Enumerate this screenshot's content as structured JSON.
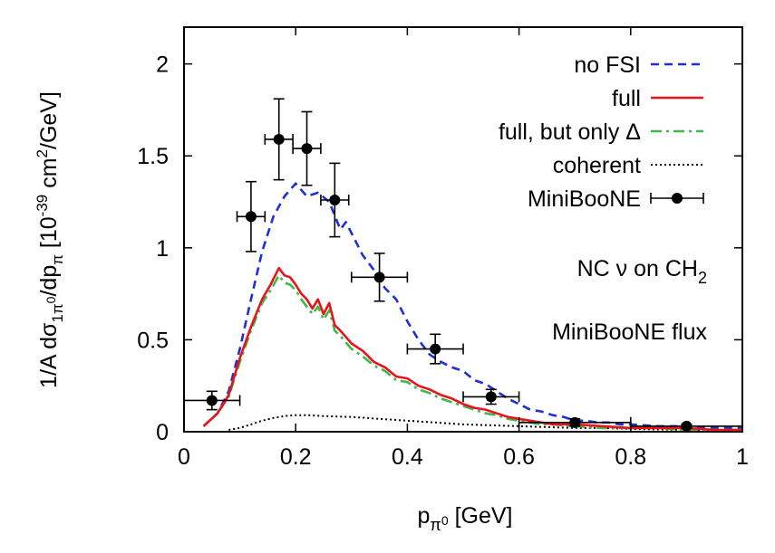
{
  "chart_data": {
    "type": "line",
    "xlabel": "p",
    "xlabel_sub": "π",
    "xlabel_subsup": "0",
    "xlabel_unit": " [GeV]",
    "ylabel_parts": {
      "pre": "1/A dσ",
      "sub1": "1π",
      "sup1": "0",
      "mid": "/dp",
      "sub2": "π",
      "post": " [10",
      "sup2": "-39",
      "post2": " cm",
      "sup3": "2",
      "post3": "/GeV]"
    },
    "xlim": [
      0,
      1
    ],
    "ylim": [
      0,
      2.2
    ],
    "xticks": [
      0,
      0.2,
      0.4,
      0.6,
      0.8,
      1
    ],
    "xtick_labels": [
      "0",
      "0.2",
      "0.4",
      "0.6",
      "0.8",
      "1"
    ],
    "yticks": [
      0,
      0.5,
      1,
      1.5,
      2
    ],
    "ytick_labels": [
      "0",
      "0.5",
      "1",
      "1.5",
      "2"
    ],
    "legend_position": "top-right",
    "annotations": {
      "line1_pre": "NC ν on CH",
      "line1_sub": "2",
      "line2": "MiniBooNE flux"
    },
    "series": [
      {
        "name": "no FSI",
        "color": "#1f2fd8",
        "style": "dashed",
        "x": [
          0.035,
          0.06,
          0.08,
          0.1,
          0.12,
          0.14,
          0.16,
          0.18,
          0.2,
          0.22,
          0.24,
          0.26,
          0.28,
          0.29,
          0.3,
          0.32,
          0.34,
          0.36,
          0.38,
          0.4,
          0.42,
          0.44,
          0.46,
          0.48,
          0.5,
          0.52,
          0.54,
          0.56,
          0.58,
          0.6,
          0.62,
          0.64,
          0.66,
          0.68,
          0.7,
          0.72,
          0.74,
          0.76,
          0.78,
          0.8,
          0.85,
          0.9,
          0.95,
          1.0
        ],
        "y": [
          0.03,
          0.1,
          0.22,
          0.45,
          0.72,
          0.98,
          1.17,
          1.28,
          1.35,
          1.28,
          1.3,
          1.25,
          1.1,
          1.14,
          1.08,
          0.96,
          0.88,
          0.78,
          0.72,
          0.6,
          0.5,
          0.42,
          0.38,
          0.35,
          0.33,
          0.28,
          0.26,
          0.22,
          0.18,
          0.15,
          0.12,
          0.11,
          0.09,
          0.08,
          0.06,
          0.06,
          0.05,
          0.05,
          0.04,
          0.04,
          0.03,
          0.03,
          0.02,
          0.02
        ]
      },
      {
        "name": "full",
        "color": "#e8141b",
        "style": "solid",
        "x": [
          0.035,
          0.06,
          0.08,
          0.1,
          0.12,
          0.14,
          0.155,
          0.17,
          0.18,
          0.19,
          0.2,
          0.21,
          0.22,
          0.23,
          0.24,
          0.25,
          0.26,
          0.27,
          0.28,
          0.3,
          0.32,
          0.34,
          0.36,
          0.38,
          0.4,
          0.42,
          0.44,
          0.46,
          0.48,
          0.5,
          0.52,
          0.54,
          0.56,
          0.58,
          0.6,
          0.62,
          0.64,
          0.66,
          0.7,
          0.75,
          0.8,
          0.85,
          0.9,
          0.95,
          1.0
        ],
        "y": [
          0.03,
          0.1,
          0.2,
          0.4,
          0.57,
          0.72,
          0.8,
          0.89,
          0.85,
          0.84,
          0.8,
          0.75,
          0.72,
          0.67,
          0.72,
          0.64,
          0.7,
          0.58,
          0.55,
          0.48,
          0.44,
          0.38,
          0.35,
          0.3,
          0.29,
          0.25,
          0.23,
          0.2,
          0.18,
          0.15,
          0.13,
          0.12,
          0.1,
          0.08,
          0.07,
          0.06,
          0.05,
          0.04,
          0.04,
          0.03,
          0.02,
          0.02,
          0.02,
          0.01,
          0.01
        ]
      },
      {
        "name": "full, but only Δ",
        "color": "#3db84a",
        "style": "dashdot",
        "x": [
          0.035,
          0.06,
          0.08,
          0.1,
          0.12,
          0.14,
          0.155,
          0.17,
          0.18,
          0.19,
          0.2,
          0.21,
          0.22,
          0.23,
          0.24,
          0.25,
          0.26,
          0.27,
          0.28,
          0.3,
          0.32,
          0.34,
          0.36,
          0.38,
          0.4,
          0.42,
          0.44,
          0.46,
          0.48,
          0.5,
          0.52,
          0.54,
          0.56,
          0.58,
          0.6,
          0.62,
          0.64,
          0.66,
          0.7,
          0.75,
          0.8,
          0.85,
          0.9,
          0.95,
          1.0
        ],
        "y": [
          0.03,
          0.1,
          0.19,
          0.38,
          0.55,
          0.7,
          0.77,
          0.85,
          0.81,
          0.8,
          0.77,
          0.72,
          0.68,
          0.64,
          0.68,
          0.61,
          0.66,
          0.55,
          0.52,
          0.45,
          0.41,
          0.36,
          0.33,
          0.28,
          0.27,
          0.23,
          0.21,
          0.18,
          0.16,
          0.14,
          0.12,
          0.1,
          0.09,
          0.07,
          0.06,
          0.05,
          0.04,
          0.04,
          0.03,
          0.02,
          0.02,
          0.02,
          0.01,
          0.01,
          0.01
        ]
      },
      {
        "name": "coherent",
        "color": "#000000",
        "style": "dotted",
        "x": [
          0.08,
          0.1,
          0.12,
          0.14,
          0.16,
          0.18,
          0.2,
          0.22,
          0.25,
          0.3,
          0.35,
          0.4,
          0.45,
          0.5,
          0.55,
          0.6,
          0.65,
          0.7,
          0.75,
          0.8,
          0.9,
          1.0
        ],
        "y": [
          0.01,
          0.02,
          0.04,
          0.06,
          0.075,
          0.085,
          0.09,
          0.09,
          0.085,
          0.08,
          0.07,
          0.06,
          0.05,
          0.04,
          0.035,
          0.03,
          0.025,
          0.02,
          0.02,
          0.015,
          0.01,
          0.01
        ]
      },
      {
        "name": "MiniBooNE",
        "color": "#000000",
        "style": "points",
        "points": [
          {
            "x": 0.05,
            "y": 0.17,
            "xerr": 0.05,
            "yerr": 0.05
          },
          {
            "x": 0.12,
            "y": 1.17,
            "xerr": 0.025,
            "yerr": 0.19
          },
          {
            "x": 0.17,
            "y": 1.59,
            "xerr": 0.025,
            "yerr": 0.22
          },
          {
            "x": 0.22,
            "y": 1.54,
            "xerr": 0.025,
            "yerr": 0.2
          },
          {
            "x": 0.27,
            "y": 1.26,
            "xerr": 0.025,
            "yerr": 0.2
          },
          {
            "x": 0.35,
            "y": 0.84,
            "xerr": 0.05,
            "yerr": 0.13
          },
          {
            "x": 0.45,
            "y": 0.45,
            "xerr": 0.05,
            "yerr": 0.08
          },
          {
            "x": 0.55,
            "y": 0.19,
            "xerr": 0.05,
            "yerr": 0.04
          },
          {
            "x": 0.7,
            "y": 0.05,
            "xerr": 0.1,
            "yerr": 0.02
          },
          {
            "x": 0.9,
            "y": 0.03,
            "xerr": 0.1,
            "yerr": 0.01
          }
        ]
      }
    ]
  }
}
